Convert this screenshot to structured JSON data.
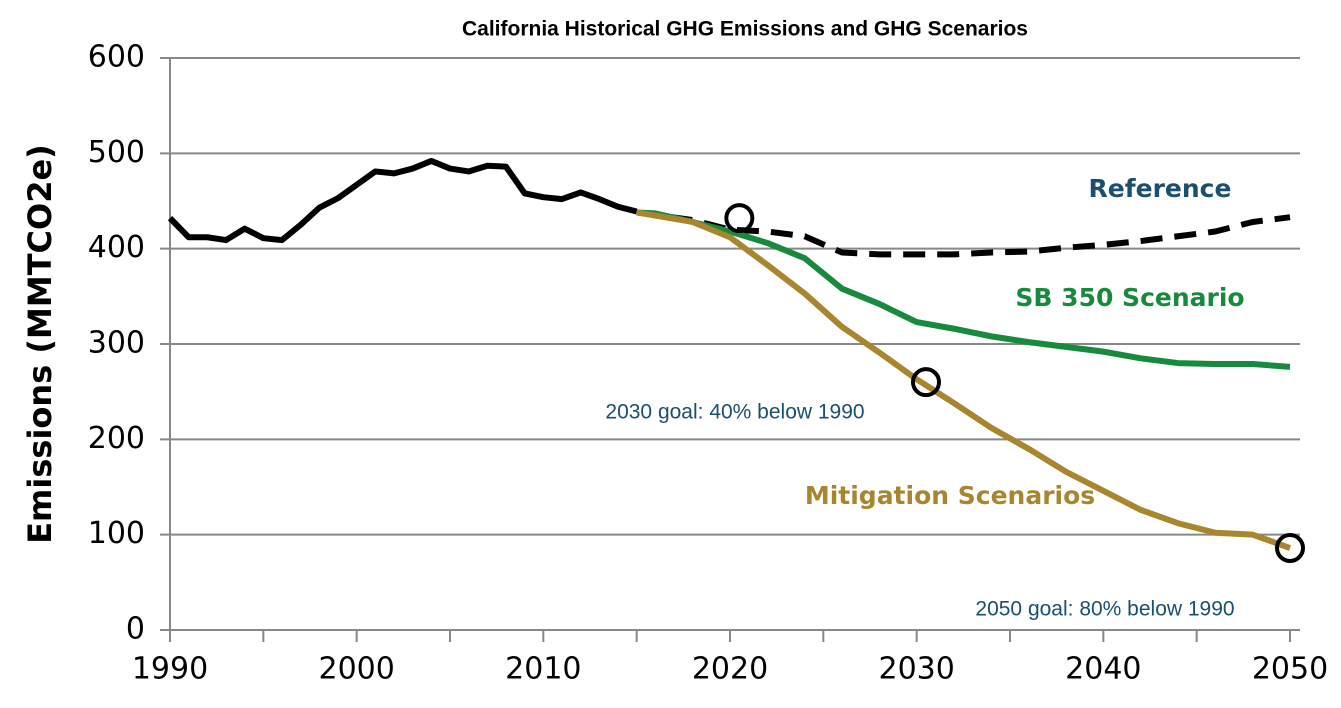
{
  "chart_data": {
    "type": "line",
    "title": "California Historical GHG Emissions and GHG Scenarios",
    "y_label": "Emissions (MMTCO2e)",
    "xlim": [
      1990,
      2050
    ],
    "xticks": [
      1990,
      2000,
      2010,
      2020,
      2030,
      2040,
      2050
    ],
    "xminor_ticks": [
      1995,
      2005,
      2015,
      2025,
      2035,
      2045
    ],
    "ylim": [
      0,
      600
    ],
    "yticks": [
      0,
      100,
      200,
      300,
      400,
      500,
      600
    ],
    "grid": true,
    "series": [
      {
        "color": "#000000",
        "style": "solid",
        "x": [
          1990,
          1991,
          1992,
          1993,
          1994,
          1995,
          1996,
          1997,
          1998,
          1999,
          2000,
          2001,
          2002,
          2003,
          2004,
          2005,
          2006,
          2007,
          2008,
          2009,
          2010,
          2011,
          2012,
          2013,
          2014,
          2015
        ],
        "values": [
          432,
          412,
          412,
          409,
          421,
          411,
          409,
          425,
          443,
          453,
          467,
          481,
          479,
          484,
          492,
          484,
          481,
          487,
          486,
          458,
          454,
          452,
          459,
          452,
          444,
          439
        ]
      },
      {
        "name": "Reference",
        "color": "#000000",
        "style": "dashed",
        "x": [
          2015,
          2018,
          2020,
          2022,
          2024,
          2026,
          2028,
          2030,
          2032,
          2034,
          2036,
          2038,
          2040,
          2042,
          2044,
          2046,
          2048,
          2050
        ],
        "values": [
          438,
          430,
          420,
          418,
          413,
          396,
          394,
          394,
          394,
          396,
          397,
          401,
          404,
          408,
          413,
          418,
          428,
          433
        ]
      },
      {
        "name": "SB 350 Scenario",
        "color": "#178a3e",
        "style": "solid",
        "x": [
          2015,
          2016,
          2018,
          2020,
          2022,
          2024,
          2026,
          2028,
          2030,
          2032,
          2034,
          2036,
          2038,
          2040,
          2042,
          2044,
          2046,
          2048,
          2050
        ],
        "values": [
          438,
          437,
          428,
          418,
          406,
          390,
          358,
          342,
          323,
          316,
          308,
          302,
          297,
          292,
          285,
          280,
          279,
          279,
          276
        ]
      },
      {
        "name": "Mitigation Scenarios",
        "color": "#a8862e",
        "style": "solid",
        "x": [
          2015,
          2018,
          2020,
          2022,
          2024,
          2026,
          2028,
          2030,
          2032,
          2034,
          2036,
          2038,
          2040,
          2042,
          2044,
          2046,
          2048,
          2050
        ],
        "values": [
          438,
          428,
          412,
          383,
          353,
          318,
          291,
          263,
          238,
          212,
          190,
          166,
          146,
          126,
          112,
          102,
          100,
          86
        ]
      }
    ],
    "markers": [
      {
        "x": 2020.5,
        "y": 432
      },
      {
        "x": 2030.5,
        "y": 260
      },
      {
        "x": 2050,
        "y": 86
      }
    ],
    "annotations": [
      "2030 goal: 40% below 1990",
      "2050 goal: 80% below 1990"
    ]
  }
}
